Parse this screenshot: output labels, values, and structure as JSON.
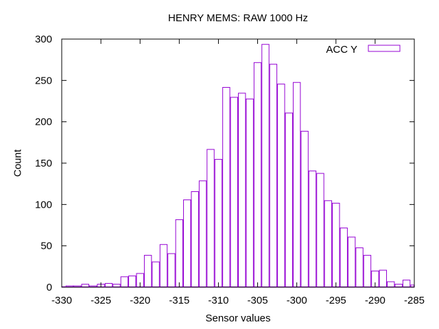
{
  "chart_data": {
    "type": "bar",
    "title": "HENRY MEMS: RAW 1000 Hz",
    "xlabel": "Sensor values",
    "ylabel": "Count",
    "xlim": [
      -330,
      -285
    ],
    "ylim": [
      0,
      300
    ],
    "xticks": [
      -330,
      -325,
      -320,
      -315,
      -310,
      -305,
      -300,
      -295,
      -290,
      -285
    ],
    "yticks": [
      0,
      50,
      100,
      150,
      200,
      250,
      300
    ],
    "grid": false,
    "legend_position": "top-right",
    "bin_width": 1,
    "series": [
      {
        "name": "ACC Y",
        "color": "#9400d3",
        "fill": "none",
        "x": [
          -330,
          -329,
          -328,
          -327,
          -326,
          -325,
          -324,
          -323,
          -322,
          -321,
          -320,
          -319,
          -318,
          -317,
          -316,
          -315,
          -314,
          -313,
          -312,
          -311,
          -310,
          -309,
          -308,
          -307,
          -306,
          -305,
          -304,
          -303,
          -302,
          -301,
          -300,
          -299,
          -298,
          -297,
          -296,
          -295,
          -294,
          -293,
          -292,
          -291,
          -290,
          -289,
          -288,
          -287,
          -286,
          -285
        ],
        "values": [
          1,
          2,
          2,
          4,
          2,
          4,
          5,
          4,
          13,
          14,
          17,
          39,
          31,
          52,
          41,
          82,
          106,
          116,
          129,
          167,
          155,
          242,
          230,
          235,
          228,
          272,
          294,
          270,
          246,
          211,
          248,
          189,
          141,
          138,
          105,
          102,
          72,
          61,
          48,
          39,
          20,
          21,
          7,
          4,
          9,
          3
        ]
      }
    ]
  }
}
